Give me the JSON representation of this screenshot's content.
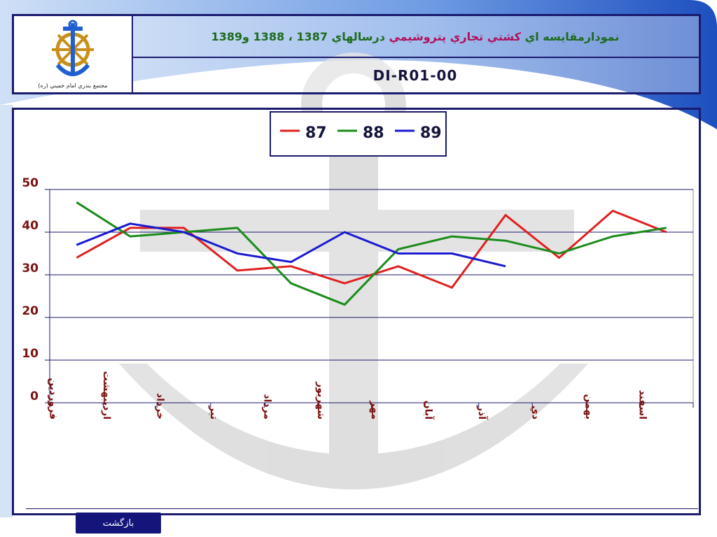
{
  "header": {
    "title_part1": "نمودارمقايسه اي",
    "title_part2": "كشتي تجاري پتروشيمي",
    "title_part3": "درسالهاي 1387 ، 1388 و1389",
    "code": "DI-R01-00",
    "logo_caption": "مجتمع بندري امام خميني (ره)"
  },
  "footer": {
    "back_label": "بازگشت"
  },
  "colors": {
    "series87": "#e02020",
    "series88": "#1a8c1a",
    "series89": "#1a1ad0",
    "tick": "#7a1010",
    "frame": "#1a1a6e"
  },
  "chart_data": {
    "type": "line",
    "categories": [
      "فروردين",
      "ارديبهشت",
      "خرداد",
      "تير",
      "مرداد",
      "شهريور",
      "مهر",
      "آبان",
      "آذر",
      "دي",
      "بهمن",
      "اسفند"
    ],
    "series": [
      {
        "name": "87",
        "values": [
          34,
          41,
          41,
          31,
          32,
          28,
          32,
          27,
          44,
          34,
          45,
          40
        ]
      },
      {
        "name": "88",
        "values": [
          47,
          39,
          40,
          41,
          28,
          23,
          36,
          39,
          38,
          35,
          39,
          41
        ]
      },
      {
        "name": "89",
        "values": [
          37,
          42,
          40,
          35,
          33,
          40,
          35,
          35,
          32,
          null,
          null,
          null
        ]
      }
    ],
    "ylim": [
      0,
      50
    ],
    "yticks": [
      "0",
      "10",
      "20",
      "30",
      "40",
      "50"
    ],
    "grid": true,
    "legend": "top-center"
  }
}
